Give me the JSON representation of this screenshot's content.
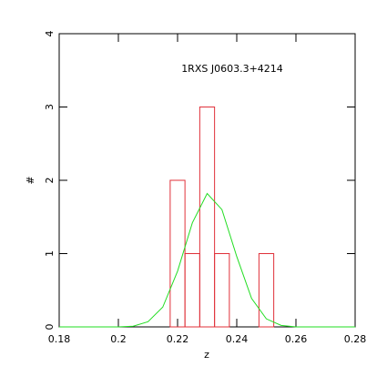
{
  "chart_data": {
    "type": "histogram",
    "annotation": "1RXS J0603.3+4214",
    "xlabel": "z",
    "ylabel": "#",
    "bins": [
      0.2175,
      0.2225,
      0.2275,
      0.2325,
      0.2375,
      0.2425,
      0.2475,
      0.2525
    ],
    "counts": [
      2,
      1,
      3,
      1,
      0,
      0,
      1
    ],
    "color": "#e0303a",
    "curve": {
      "type": "line",
      "color": "#22dd22",
      "x": [
        0.18,
        0.185,
        0.19,
        0.195,
        0.2,
        0.205,
        0.21,
        0.215,
        0.22,
        0.225,
        0.23,
        0.235,
        0.24,
        0.245,
        0.25,
        0.255,
        0.26,
        0.265,
        0.27,
        0.275,
        0.28
      ],
      "values": [
        0,
        0,
        0,
        0,
        0,
        0.01,
        0.07,
        0.27,
        0.76,
        1.42,
        1.82,
        1.6,
        0.96,
        0.39,
        0.11,
        0.02,
        0,
        0,
        0,
        0,
        0
      ]
    },
    "xlim": [
      0.18,
      0.28
    ],
    "xticks": [
      0.18,
      0.2,
      0.22,
      0.24,
      0.26,
      0.28
    ],
    "ylim": [
      0,
      4
    ],
    "yticks": [
      0,
      1,
      2,
      3,
      4
    ]
  }
}
